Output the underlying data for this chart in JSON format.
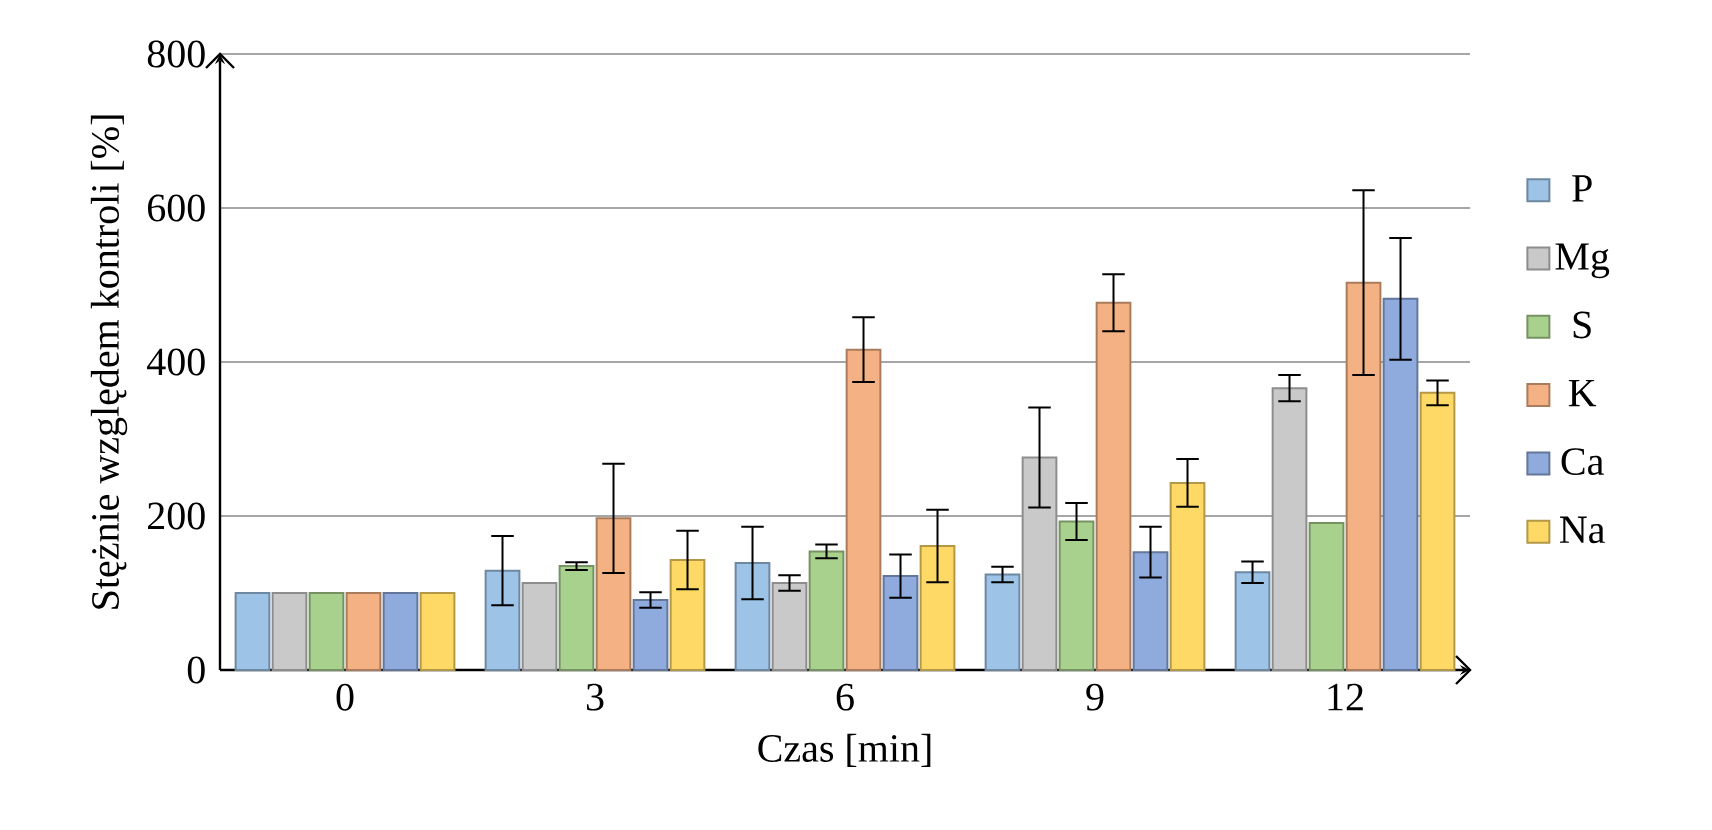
{
  "chart_data": {
    "type": "bar",
    "xlabel": "Czas [min]",
    "ylabel": "Stężnie względem kontroli [%]",
    "categories": [
      "0",
      "3",
      "6",
      "9",
      "12"
    ],
    "series": [
      {
        "name": "P",
        "color": "#9dc3e6",
        "values": [
          100,
          129,
          139,
          124,
          127
        ],
        "errors": [
          null,
          45,
          47,
          10,
          14
        ]
      },
      {
        "name": "Mg",
        "color": "#c9c9c9",
        "values": [
          100,
          113,
          113,
          276,
          366
        ],
        "errors": [
          null,
          null,
          10,
          65,
          17
        ]
      },
      {
        "name": "S",
        "color": "#a9d18e",
        "values": [
          100,
          135,
          154,
          193,
          191
        ],
        "errors": [
          null,
          5,
          9,
          24,
          null
        ]
      },
      {
        "name": "K",
        "color": "#f4b183",
        "values": [
          100,
          197,
          416,
          477,
          503
        ],
        "errors": [
          null,
          71,
          42,
          37,
          120
        ]
      },
      {
        "name": "Ca",
        "color": "#8faadc",
        "values": [
          100,
          91,
          122,
          153,
          482
        ],
        "errors": [
          null,
          10,
          28,
          33,
          79
        ]
      },
      {
        "name": "Na",
        "color": "#ffd966",
        "values": [
          100,
          143,
          161,
          243,
          360
        ],
        "errors": [
          null,
          38,
          47,
          31,
          16
        ]
      }
    ],
    "ylim": [
      0,
      800
    ],
    "yticks": [
      0,
      200,
      400,
      600,
      800
    ],
    "grid": "y",
    "legend": "right"
  }
}
